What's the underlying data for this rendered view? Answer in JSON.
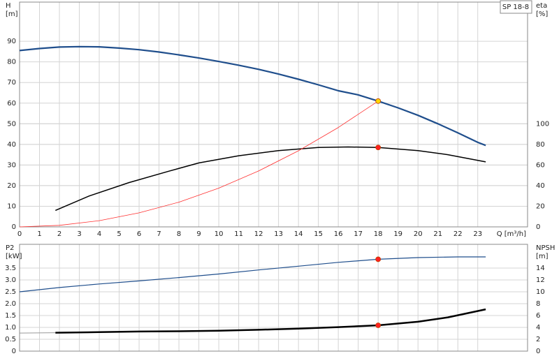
{
  "chart_data": [
    {
      "type": "line",
      "annotation": "SP 18-8",
      "ylabel": "H",
      "yunit": "[m]",
      "y2label": "eta",
      "y2unit": "[%]",
      "xlabel": "Q [m³/h]",
      "xlim": [
        0,
        25.5
      ],
      "xticks": [
        0,
        1,
        2,
        3,
        4,
        5,
        6,
        7,
        8,
        9,
        10,
        11,
        12,
        13,
        14,
        15,
        16,
        17,
        18,
        19,
        20,
        21,
        22,
        23
      ],
      "ylim": [
        0,
        109
      ],
      "yticks": [
        0,
        10,
        20,
        30,
        40,
        50,
        60,
        70,
        80,
        90
      ],
      "y2lim": [
        0,
        218
      ],
      "y2ticks": [
        0,
        20,
        40,
        60,
        80,
        100
      ],
      "grid": true,
      "series": [
        {
          "color": "#1f4e8c",
          "width": 2.2,
          "x": [
            0,
            1,
            2,
            3,
            4,
            5,
            6,
            7,
            8,
            9,
            10,
            11,
            12,
            13,
            14,
            15,
            16,
            17,
            18,
            19,
            20,
            21,
            22,
            23,
            23.4
          ],
          "values": [
            85.5,
            86.5,
            87.2,
            87.4,
            87.3,
            86.7,
            85.9,
            84.8,
            83.4,
            81.9,
            80.2,
            78.4,
            76.4,
            74.1,
            71.6,
            68.9,
            66.0,
            64.0,
            61.0,
            57.7,
            54.1,
            50.0,
            45.6,
            41.0,
            39.5
          ]
        },
        {
          "color": "#000000",
          "width": 1.5,
          "axis": "y2",
          "x": [
            1.8,
            3.5,
            5.5,
            7.5,
            9,
            11,
            13,
            15,
            16.5,
            18,
            20,
            21.5,
            23.4
          ],
          "values": [
            16,
            30,
            43,
            54,
            62,
            69,
            74,
            77,
            77.5,
            77,
            74,
            70,
            63
          ]
        },
        {
          "color": "#ff3030",
          "width": 0.8,
          "x": [
            0,
            2,
            4,
            6,
            8,
            10,
            12,
            14,
            16,
            18
          ],
          "values": [
            0,
            0.75,
            3.0,
            6.8,
            12.0,
            18.8,
            27.1,
            36.9,
            48.2,
            61
          ]
        }
      ],
      "points": [
        {
          "x": 18,
          "y": 61,
          "color": "#ffd700"
        },
        {
          "x": 18,
          "y": 77,
          "axis": "y2",
          "color": "#ff2020"
        }
      ]
    },
    {
      "type": "line",
      "ylabel": "P2",
      "yunit": "[kW]",
      "y2label": "NPSH",
      "y2unit": "[m]",
      "xlim": [
        0,
        25.5
      ],
      "xticks": [
        0,
        1,
        2,
        3,
        4,
        5,
        6,
        7,
        8,
        9,
        10,
        11,
        12,
        13,
        14,
        15,
        16,
        17,
        18,
        19,
        20,
        21,
        22,
        23
      ],
      "ylim": [
        0,
        4.5
      ],
      "yticks": [
        0,
        0.5,
        {
          "value": 1,
          "label": "1.0"
        },
        1.5,
        {
          "value": 2,
          "label": "2.0"
        },
        2.5,
        {
          "value": 3,
          "label": "3.0"
        },
        3.5
      ],
      "y2lim": [
        0,
        18
      ],
      "y2ticks": [
        0,
        2,
        4,
        6,
        8,
        10,
        12,
        14
      ],
      "grid": true,
      "series": [
        {
          "color": "#1f4e8c",
          "width": 1.2,
          "x": [
            0,
            2,
            4,
            6,
            8,
            10,
            12,
            14,
            16,
            18,
            20,
            22,
            23.4
          ],
          "values": [
            2.5,
            2.68,
            2.83,
            2.96,
            3.1,
            3.25,
            3.42,
            3.58,
            3.74,
            3.87,
            3.94,
            3.97,
            3.97
          ]
        },
        {
          "color": "#999999",
          "width": 1,
          "axis": "y2",
          "x": [
            0,
            1.8
          ],
          "values": [
            3.05,
            3.1
          ]
        },
        {
          "color": "#000000",
          "width": 2.5,
          "axis": "y2",
          "x": [
            1.8,
            4,
            6,
            8,
            10,
            12,
            14,
            16,
            18,
            20,
            21.5,
            23.4
          ],
          "values": [
            3.1,
            3.2,
            3.3,
            3.35,
            3.45,
            3.6,
            3.8,
            4.05,
            4.35,
            4.95,
            5.7,
            7.05
          ]
        }
      ],
      "points": [
        {
          "x": 18,
          "y": 3.87,
          "color": "#ff2020"
        },
        {
          "x": 18,
          "y": 4.35,
          "axis": "y2",
          "color": "#ff2020"
        }
      ]
    }
  ]
}
